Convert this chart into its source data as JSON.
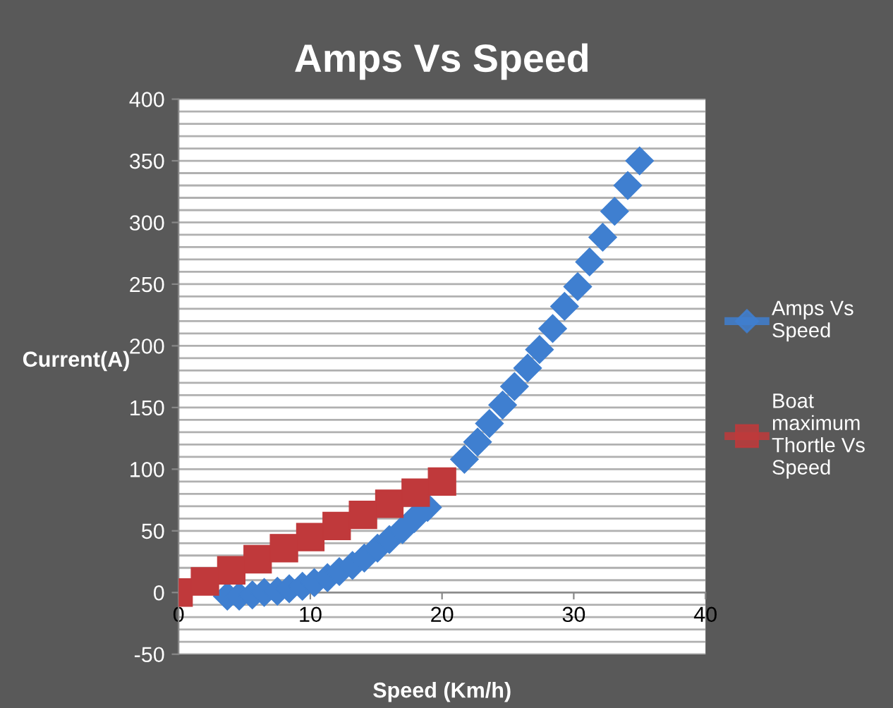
{
  "chart_data": {
    "type": "scatter",
    "title": "Amps Vs Speed",
    "xlabel": "Speed (Km/h)",
    "ylabel": "Current(A)",
    "xlim": [
      0,
      40
    ],
    "xticks": [
      0,
      10,
      20,
      30,
      40
    ],
    "ylim": [
      -50,
      400
    ],
    "yticks": [
      -50,
      0,
      50,
      100,
      150,
      200,
      250,
      300,
      350,
      400
    ],
    "grid": "y",
    "legend": "right",
    "line_style": "solid",
    "series": [
      {
        "name": "Amps Vs Speed",
        "color": "#3f7fd0",
        "marker": "diamond",
        "x": [
          3.7,
          4.6,
          5.6,
          6.5,
          7.5,
          8.4,
          9.4,
          10.3,
          11.3,
          12.2,
          13.2,
          14.1,
          15.1,
          16.0,
          17.0,
          17.9,
          18.9,
          21.7,
          22.7,
          23.6,
          24.6,
          25.5,
          26.5,
          27.4,
          28.4,
          29.3,
          30.3,
          31.2,
          32.2,
          33.1,
          34.1,
          35.0
        ],
        "values": [
          -3,
          -3,
          -2,
          0,
          1,
          3,
          5,
          8,
          12,
          17,
          22,
          28,
          36,
          43,
          51,
          60,
          69,
          108,
          122,
          137,
          152,
          167,
          182,
          197,
          214,
          232,
          248,
          268,
          288,
          309,
          330,
          350
        ]
      },
      {
        "name": "Boat maximum Thortle Vs Speed",
        "color": "#c0393b",
        "marker": "square",
        "x": [
          0,
          2,
          4,
          6,
          8,
          10,
          12,
          14,
          16,
          18,
          20
        ],
        "values": [
          0,
          9,
          18,
          27,
          36,
          45,
          54,
          63,
          72,
          81,
          90
        ]
      }
    ]
  }
}
